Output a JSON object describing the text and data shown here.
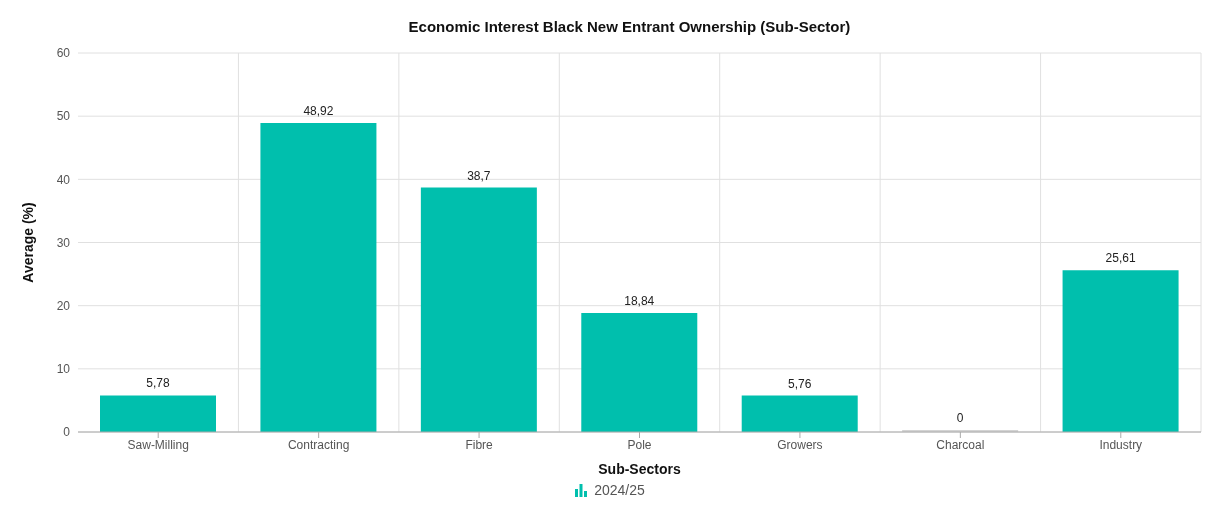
{
  "chart_data": {
    "type": "bar",
    "title": "Economic Interest Black New Entrant Ownership (Sub-Sector)",
    "xlabel": "Sub-Sectors",
    "ylabel": "Average (%)",
    "categories": [
      "Saw-Milling",
      "Contracting",
      "Fibre",
      "Pole",
      "Growers",
      "Charcoal",
      "Industry"
    ],
    "series": [
      {
        "name": "2024/25",
        "color": "#00bfad",
        "colors": [
          "#00bfad",
          "#00bfad",
          "#00bfad",
          "#00bfad",
          "#00bfad",
          "#d3d3d3",
          "#00bfad"
        ],
        "values": [
          5.78,
          48.92,
          38.7,
          18.84,
          5.76,
          0,
          25.61
        ],
        "value_labels": [
          "5,78",
          "48,92",
          "38,7",
          "18,84",
          "5,76",
          "0",
          "25,61"
        ]
      }
    ],
    "ylim": [
      0,
      60
    ],
    "yticks": [
      0,
      10,
      20,
      30,
      40,
      50,
      60
    ],
    "grid": true,
    "legend": "bottom"
  }
}
